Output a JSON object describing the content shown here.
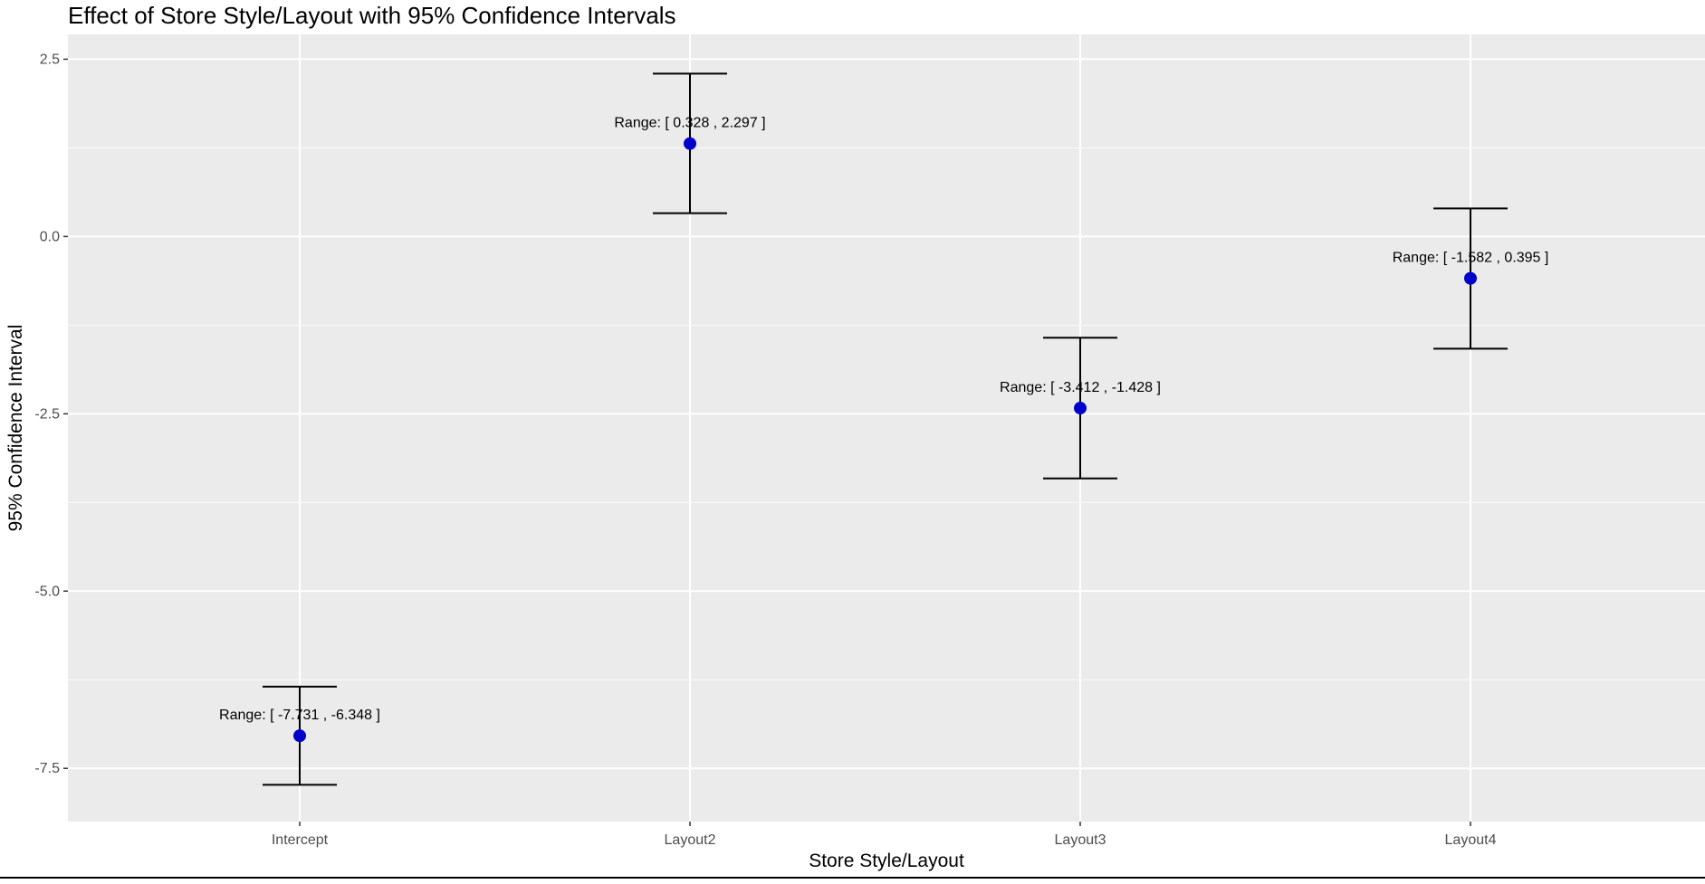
{
  "chart_data": {
    "type": "scatter",
    "title": "Effect of Store Style/Layout with 95% Confidence Intervals",
    "xlabel": "Store Style/Layout",
    "ylabel": "95% Confidence Interval",
    "categories": [
      "Intercept",
      "Layout2",
      "Layout3",
      "Layout4"
    ],
    "estimates": [
      -7.04,
      1.31,
      -2.42,
      -0.59
    ],
    "lower": [
      -7.731,
      0.328,
      -3.412,
      -1.582
    ],
    "upper": [
      -6.348,
      2.297,
      -1.428,
      0.395
    ],
    "point_labels": [
      "Range: [ -7.731 ,  -6.348 ]",
      "Range: [ 0.328 ,  2.297 ]",
      "Range: [ -3.412 ,  -1.428 ]",
      "Range: [ -1.582 ,  0.395 ]"
    ],
    "yticks": [
      2.5,
      0.0,
      -2.5,
      -5.0,
      -7.5
    ],
    "ytick_labels": [
      "2.5",
      "0.0",
      "-2.5",
      "-5.0",
      "-7.5"
    ],
    "ylim": [
      -8.25,
      2.85
    ],
    "grid": true,
    "colors": {
      "panel_background": "#ebebeb",
      "grid": "#ffffff",
      "point": "#0000cd",
      "errorbar": "#000000"
    }
  }
}
